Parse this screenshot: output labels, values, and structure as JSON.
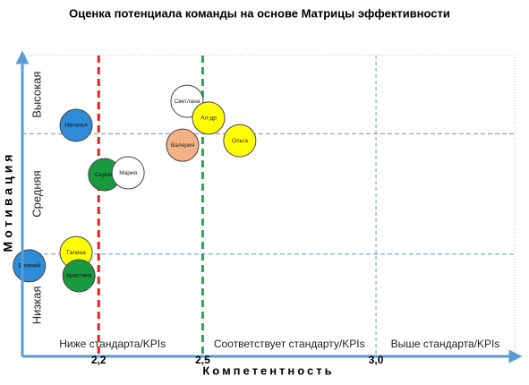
{
  "chart_data": {
    "type": "scatter",
    "title": "Оценка потенциала команды на  основе Матрицы эффективности",
    "xlabel": "Компетентность",
    "ylabel": "Мотивация",
    "xlim": [
      1.98,
      3.4
    ],
    "ylim": [
      0,
      100
    ],
    "xticks": [
      {
        "value": 2.2,
        "label": "2,2"
      },
      {
        "value": 2.5,
        "label": "2,5"
      },
      {
        "value": 3.0,
        "label": "3,0"
      }
    ],
    "xtick_line_colors": [
      "#e8201e",
      "#1faa4b",
      "#5b9bd5"
    ],
    "xbands": [
      {
        "label": "Ниже стандарта/KPIs",
        "from": 1.98,
        "to": 2.5
      },
      {
        "label": "Соответствует стандарту/KPIs",
        "from": 2.5,
        "to": 3.0
      },
      {
        "label": "Выше стандарта/KPIs",
        "from": 3.0,
        "to": 3.4
      }
    ],
    "ybands": [
      {
        "label": "Низкая",
        "from": 0,
        "to": 34
      },
      {
        "label": "Средняя",
        "from": 34,
        "to": 74
      },
      {
        "label": "Высокая",
        "from": 74,
        "to": 100
      }
    ],
    "points": [
      {
        "name": "Наталья",
        "x": 2.135,
        "y": 76.8,
        "color": "#2e8bd8"
      },
      {
        "name": "Светлана",
        "x": 2.455,
        "y": 84.8,
        "color": "#ffffff"
      },
      {
        "name": "Ал-др",
        "x": 2.517,
        "y": 79.2,
        "color": "#ffff00"
      },
      {
        "name": "Ольга",
        "x": 2.607,
        "y": 71.7,
        "color": "#ffff00"
      },
      {
        "name": "Валерия",
        "x": 2.442,
        "y": 70.2,
        "color": "#f4b183"
      },
      {
        "name": "Сергей",
        "x": 2.217,
        "y": 60.4,
        "color": "#1a9a3e"
      },
      {
        "name": "Мария",
        "x": 2.285,
        "y": 61.0,
        "color": "#ffffff"
      },
      {
        "name": "Галина",
        "x": 2.135,
        "y": 34.5,
        "color": "#ffff00"
      },
      {
        "name": "Евгений",
        "x": 2.0,
        "y": 30.1,
        "color": "#2e8bd8"
      },
      {
        "name": "Кристина",
        "x": 2.143,
        "y": 26.8,
        "color": "#1a9a3e"
      }
    ]
  }
}
